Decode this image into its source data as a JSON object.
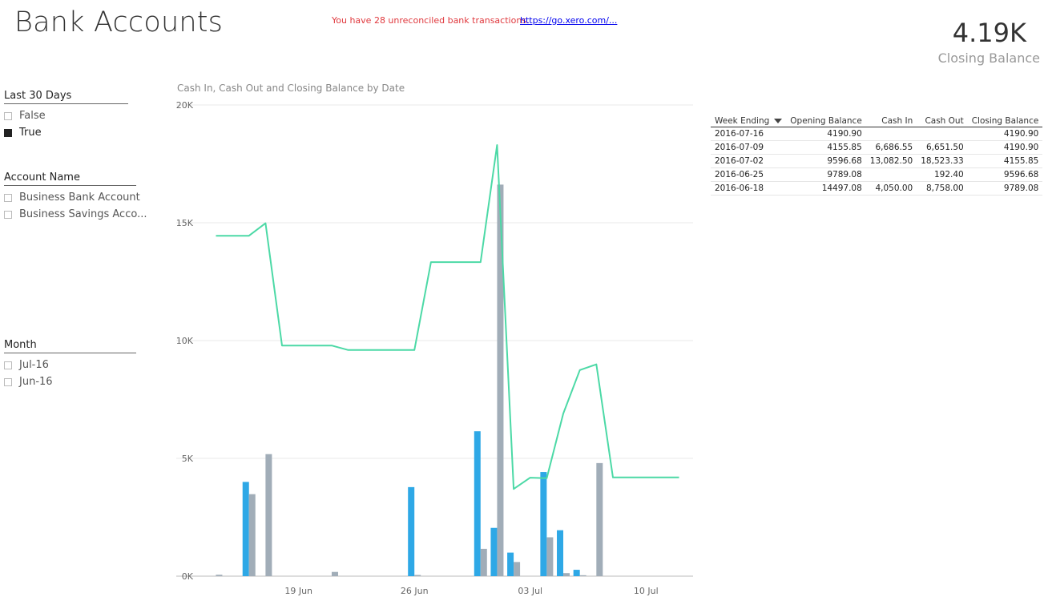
{
  "header": {
    "title": "Bank Accounts",
    "alert_message": "You have 28 unreconciled bank transactions.",
    "alert_link": "https://go.xero.com/..."
  },
  "card": {
    "value": "4.19K",
    "label": "Closing Balance"
  },
  "slicers": {
    "last30": {
      "title": "Last 30 Days",
      "items": [
        {
          "label": "False",
          "checked": false
        },
        {
          "label": "True",
          "checked": true
        }
      ]
    },
    "account": {
      "title": "Account Name",
      "items": [
        {
          "label": "Business Bank Account",
          "checked": false
        },
        {
          "label": "Business Savings Acco...",
          "checked": false
        }
      ]
    },
    "month": {
      "title": "Month",
      "items": [
        {
          "label": "Jul-16",
          "checked": false
        },
        {
          "label": "Jun-16",
          "checked": false
        }
      ]
    }
  },
  "table": {
    "columns": [
      "Week Ending",
      "Opening Balance",
      "Cash In",
      "Cash Out",
      "Closing Balance"
    ],
    "rows": [
      [
        "2016-07-16",
        "4190.90",
        "",
        "",
        "4190.90"
      ],
      [
        "2016-07-09",
        "4155.85",
        "6,686.55",
        "6,651.50",
        "4190.90"
      ],
      [
        "2016-07-02",
        "9596.68",
        "13,082.50",
        "18,523.33",
        "4155.85"
      ],
      [
        "2016-06-25",
        "9789.08",
        "",
        "192.40",
        "9596.68"
      ],
      [
        "2016-06-18",
        "14497.08",
        "4,050.00",
        "8,758.00",
        "9789.08"
      ]
    ]
  },
  "chart_data": {
    "type": "bar",
    "title": "Cash In, Cash Out and Closing Balance by Date",
    "y_ticks": [
      "0K",
      "5K",
      "10K",
      "15K",
      "20K"
    ],
    "x_ticks": [
      "19 Jun",
      "26 Jun",
      "03 Jul",
      "10 Jul"
    ],
    "x_tick_days": [
      19,
      26,
      33,
      40
    ],
    "ylim": [
      0,
      20000
    ],
    "xlim_days": [
      13.3,
      42.7
    ],
    "cash_in_color": "#2ea8e6",
    "cash_out_color": "#a1adb8",
    "balance_color": "#4cd9a6",
    "cash_in": [
      {
        "day": 16,
        "value": 4000
      },
      {
        "day": 19,
        "value": 0
      },
      {
        "day": 26,
        "value": 3780
      },
      {
        "day": 30,
        "value": 6150
      },
      {
        "day": 31,
        "value": 2050
      },
      {
        "day": 32,
        "value": 1000
      },
      {
        "day": 34,
        "value": 4420
      },
      {
        "day": 35,
        "value": 1950
      },
      {
        "day": 36,
        "value": 270
      }
    ],
    "cash_out": [
      {
        "day": 14,
        "value": 60
      },
      {
        "day": 16,
        "value": 3480
      },
      {
        "day": 17,
        "value": 5180
      },
      {
        "day": 21,
        "value": 180
      },
      {
        "day": 26,
        "value": 50
      },
      {
        "day": 30,
        "value": 1160
      },
      {
        "day": 31,
        "value": 16620
      },
      {
        "day": 32,
        "value": 600
      },
      {
        "day": 34,
        "value": 1650
      },
      {
        "day": 35,
        "value": 130
      },
      {
        "day": 36,
        "value": 40
      },
      {
        "day": 37,
        "value": 4800
      }
    ],
    "closing_balance": [
      {
        "day": 14,
        "value": 14450
      },
      {
        "day": 16,
        "value": 14450
      },
      {
        "day": 17,
        "value": 14980
      },
      {
        "day": 18,
        "value": 9789
      },
      {
        "day": 21,
        "value": 9789
      },
      {
        "day": 22,
        "value": 9597
      },
      {
        "day": 26,
        "value": 9597
      },
      {
        "day": 27,
        "value": 13330
      },
      {
        "day": 30,
        "value": 13330
      },
      {
        "day": 31,
        "value": 18300
      },
      {
        "day": 32,
        "value": 3700
      },
      {
        "day": 33,
        "value": 4180
      },
      {
        "day": 34,
        "value": 4160
      },
      {
        "day": 35,
        "value": 6900
      },
      {
        "day": 36,
        "value": 8750
      },
      {
        "day": 37,
        "value": 8990
      },
      {
        "day": 38,
        "value": 4190
      },
      {
        "day": 42,
        "value": 4190
      }
    ]
  }
}
